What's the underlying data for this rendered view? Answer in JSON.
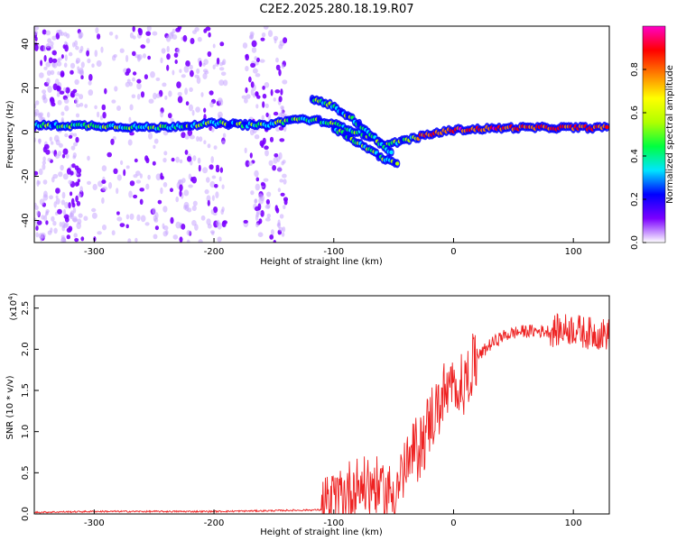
{
  "title": "C2E2.2025.280.18.19.R07",
  "chart_data": [
    {
      "type": "heatmap",
      "xlabel": "Height of straight line (km)",
      "ylabel": "Frequency (Hz)",
      "xlim": [
        -350,
        130
      ],
      "ylim": [
        -50,
        48
      ],
      "xticks": [
        -300,
        -200,
        -100,
        0,
        100
      ],
      "xtick_labels": [
        "-300",
        "-200",
        "-100",
        "0",
        "100"
      ],
      "yticks": [
        -40,
        -20,
        0,
        20,
        40
      ],
      "ytick_labels": [
        "-40",
        "-20",
        "0",
        "20",
        "40"
      ],
      "colorbar": {
        "label": "Normalized spectral amplitude",
        "range": [
          0,
          1
        ],
        "ticks": [
          0.0,
          0.2,
          0.4,
          0.6,
          0.8
        ],
        "tick_labels": [
          "0.0",
          "0.2",
          "0.4",
          "0.6",
          "0.8"
        ],
        "colors": [
          "#ffffff",
          "#7b00ff",
          "#0000ff",
          "#00e5ff",
          "#00ff40",
          "#b0ff00",
          "#ffff00",
          "#ff8000",
          "#ff0000",
          "#ff00c8"
        ]
      },
      "ridges": [
        {
          "name": "main-band",
          "x": [
            -350,
            -300,
            -250,
            -200,
            -160,
            -130,
            -110,
            -90,
            -70,
            -55,
            -45,
            -35,
            -20,
            0,
            50,
            100,
            130
          ],
          "y": [
            3,
            3,
            2,
            4,
            3,
            6,
            5,
            2,
            -2,
            -6,
            -4,
            -3,
            -1,
            1,
            2,
            2,
            2
          ]
        },
        {
          "name": "upper-branch",
          "x": [
            -118,
            -105,
            -90,
            -75,
            -60,
            -50
          ],
          "y": [
            15,
            13,
            8,
            2,
            -6,
            -10
          ]
        },
        {
          "name": "lower-branch",
          "x": [
            -100,
            -85,
            -70,
            -55,
            -45
          ],
          "y": [
            2,
            -3,
            -8,
            -13,
            -15
          ]
        }
      ],
      "scatter_regions": [
        {
          "x_range": [
            -350,
            -310
          ],
          "y_range": [
            -50,
            48
          ],
          "density": "high"
        },
        {
          "x_range": [
            -310,
            -270
          ],
          "y_range": [
            -50,
            48
          ],
          "density": "low"
        },
        {
          "x_range": [
            -270,
            -190
          ],
          "y_range": [
            -50,
            48
          ],
          "density": "high"
        },
        {
          "x_range": [
            -175,
            -140
          ],
          "y_range": [
            -50,
            48
          ],
          "density": "medium"
        }
      ]
    },
    {
      "type": "line",
      "xlabel": "Height of straight line (km)",
      "ylabel": "SNR (10 * v/v)",
      "y_scale_label": "(x10",
      "y_scale_exponent": "4",
      "y_scale_close": ")",
      "xlim": [
        -350,
        130
      ],
      "ylim": [
        0,
        2.65
      ],
      "xticks": [
        -300,
        -200,
        -100,
        0,
        100
      ],
      "xtick_labels": [
        "-300",
        "-200",
        "-100",
        "0",
        "100"
      ],
      "yticks": [
        0.0,
        0.5,
        1.0,
        1.5,
        2.0,
        2.5
      ],
      "ytick_labels": [
        "0.0",
        "0.5",
        "1.0",
        "1.5",
        "2.0",
        "2.5"
      ],
      "color": "#ee2222",
      "series": [
        {
          "name": "SNR",
          "x": [
            -350,
            -300,
            -250,
            -200,
            -150,
            -110,
            -100,
            -90,
            -80,
            -70,
            -60,
            -50,
            -40,
            -30,
            -20,
            -10,
            0,
            10,
            20,
            30,
            40,
            50,
            60,
            80,
            100,
            110,
            130
          ],
          "values": [
            0.02,
            0.03,
            0.03,
            0.03,
            0.04,
            0.05,
            0.15,
            0.25,
            0.35,
            0.35,
            0.3,
            0.25,
            0.55,
            0.8,
            1.1,
            1.4,
            1.5,
            1.6,
            1.9,
            2.05,
            2.15,
            2.2,
            2.22,
            2.22,
            2.25,
            2.2,
            2.18
          ]
        }
      ]
    }
  ]
}
